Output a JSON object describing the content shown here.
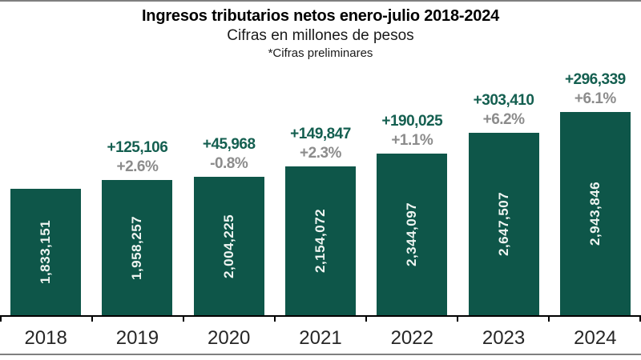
{
  "chart_data": {
    "type": "bar",
    "title": "Ingresos tributarios netos enero-julio 2018-2024",
    "subtitle": "Cifras en millones de pesos",
    "annotation": "*Cifras preliminares",
    "xlabel": "",
    "ylabel": "",
    "ylim": [
      0,
      2943846
    ],
    "grid": false,
    "legend": false,
    "categories": [
      "2018",
      "2019",
      "2020",
      "2021",
      "2022",
      "2023",
      "2024"
    ],
    "values": [
      1833151,
      1958257,
      2004225,
      2154072,
      2344097,
      2647507,
      2943846
    ],
    "bar_value_labels": [
      "1,833,151",
      "1,958,257",
      "2,004,225",
      "2,154,072",
      "2,344,097",
      "2,647,507",
      "2,943,846"
    ],
    "delta_labels": [
      "",
      "+125,106",
      "+45,968",
      "+149,847",
      "+190,025",
      "+303,410",
      "+296,339"
    ],
    "pct_change_labels": [
      "",
      "+2.6%",
      "-0.8%",
      "+2.3%",
      "+1.1%",
      "+6.2%",
      "+6.1%"
    ],
    "colors": {
      "bar_fill": "#0E5649",
      "delta_label": "#145F50",
      "pct_label": "#8C8C8C",
      "bar_value_text": "#EFF5F2",
      "axis_line": "#000000",
      "year_label": "#262626",
      "frame_line": "#7F7F7F"
    }
  }
}
